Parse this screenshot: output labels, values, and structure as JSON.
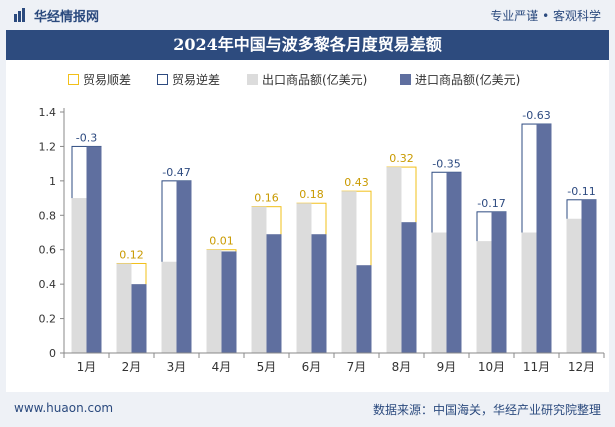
{
  "header": {
    "brand": "华经情报网",
    "tagline": "专业严谨 • 客观科学"
  },
  "footer": {
    "site": "www.huaon.com",
    "source": "数据来源：中国海关，华经产业研究院整理"
  },
  "colors": {
    "surplus": "#f2c01a",
    "deficit": "#2e4b80",
    "export": "#dcdcdc",
    "import": "#5f6f9f",
    "header_bg": "#2d4b7e"
  },
  "chart_data": {
    "type": "bar",
    "title": "2024年中国与波多黎各月度贸易差额",
    "categories": [
      "1月",
      "2月",
      "3月",
      "4月",
      "5月",
      "6月",
      "7月",
      "8月",
      "9月",
      "10月",
      "11月",
      "12月"
    ],
    "ylim": [
      0,
      1.4
    ],
    "yticks": [
      0,
      0.2,
      0.4,
      0.6,
      0.8,
      1,
      1.2,
      1.4
    ],
    "legend_position": "top",
    "legend": [
      "贸易顺差",
      "贸易逆差",
      "出口商品额(亿美元)",
      "进口商品额(亿美元)"
    ],
    "series": [
      {
        "name": "出口商品额(亿美元)",
        "values": [
          0.9,
          0.52,
          0.53,
          0.6,
          0.85,
          0.87,
          0.94,
          1.08,
          0.7,
          0.65,
          0.7,
          0.78
        ]
      },
      {
        "name": "进口商品额(亿美元)",
        "values": [
          1.2,
          0.4,
          1.0,
          0.59,
          0.69,
          0.69,
          0.51,
          0.76,
          1.05,
          0.82,
          1.33,
          0.89
        ]
      }
    ],
    "balance": [
      -0.3,
      0.12,
      -0.47,
      0.01,
      0.16,
      0.18,
      0.43,
      0.32,
      -0.35,
      -0.17,
      -0.63,
      -0.11
    ],
    "balance_labels": [
      "-0.3",
      "0.12",
      "-0.47",
      "0.01",
      "0.16",
      "0.18",
      "0.43",
      "0.32",
      "-0.35",
      "-0.17",
      "-0.63",
      "-0.11"
    ]
  }
}
